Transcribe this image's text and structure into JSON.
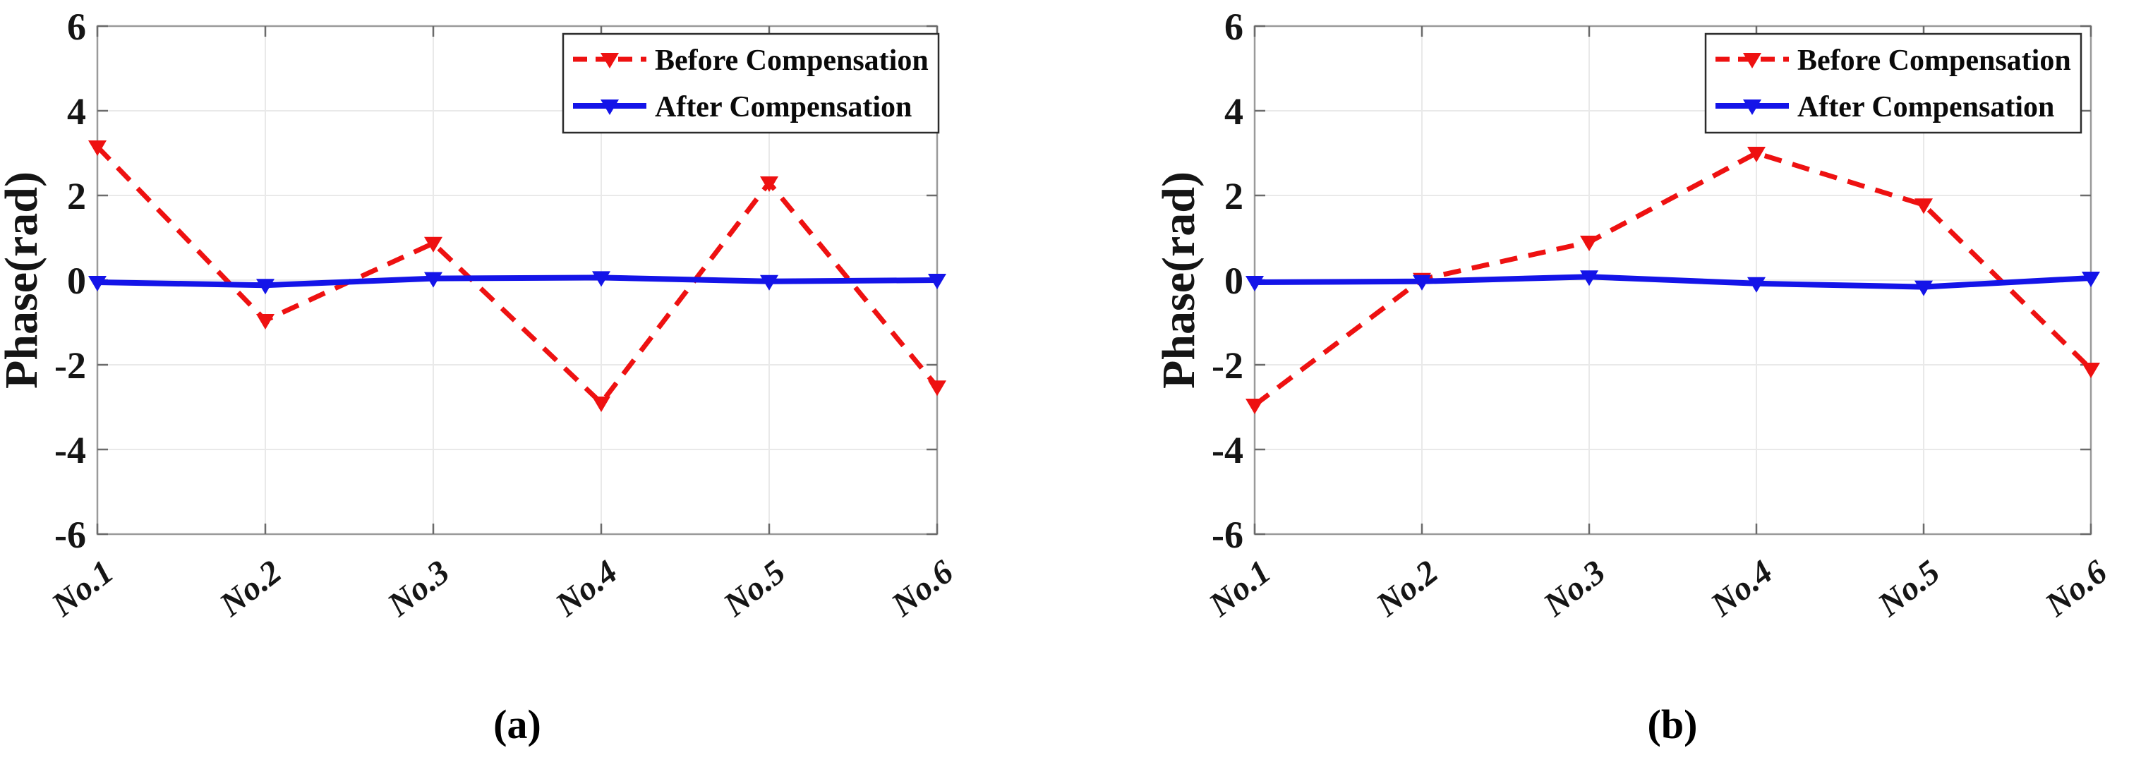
{
  "figure": {
    "background": "#ffffff",
    "grid_color": "#e9e9e9",
    "frame_color": "#9a9a9a",
    "tick_color": "#6b6b6b",
    "text_color": "#151515"
  },
  "chart_data": [
    {
      "id": "a",
      "type": "line",
      "caption": "(a)",
      "ylabel": "Phase(rad)",
      "xlabel": "",
      "categories": [
        "No.1",
        "No.2",
        "No.3",
        "No.4",
        "No.5",
        "No.6"
      ],
      "ylim": [
        -6,
        6
      ],
      "yticks": [
        6,
        4,
        2,
        0,
        -2,
        -4,
        -6
      ],
      "grid": true,
      "legend_position": "top-right",
      "series": [
        {
          "name": "Before Compensation",
          "color": "#ee1111",
          "line": "dashed",
          "marker": "triangle-down",
          "values": [
            3.15,
            -0.95,
            0.87,
            -2.9,
            2.3,
            -2.52
          ]
        },
        {
          "name": "After Compensation",
          "color": "#1414e8",
          "line": "solid",
          "marker": "triangle-down",
          "values": [
            -0.05,
            -0.12,
            0.04,
            0.06,
            -0.03,
            0.0
          ]
        }
      ]
    },
    {
      "id": "b",
      "type": "line",
      "caption": "(b)",
      "ylabel": "Phase(rad)",
      "xlabel": "",
      "categories": [
        "No.1",
        "No.2",
        "No.3",
        "No.4",
        "No.5",
        "No.6"
      ],
      "ylim": [
        -6,
        6
      ],
      "yticks": [
        6,
        4,
        2,
        0,
        -2,
        -4,
        -6
      ],
      "grid": true,
      "legend_position": "top-right",
      "series": [
        {
          "name": "Before Compensation",
          "color": "#ee1111",
          "line": "dashed",
          "marker": "triangle-down",
          "values": [
            -2.95,
            0.02,
            0.9,
            3.0,
            1.78,
            -2.1
          ]
        },
        {
          "name": "After Compensation",
          "color": "#1414e8",
          "line": "solid",
          "marker": "triangle-down",
          "values": [
            -0.05,
            -0.03,
            0.08,
            -0.08,
            -0.16,
            0.05
          ]
        }
      ]
    }
  ]
}
